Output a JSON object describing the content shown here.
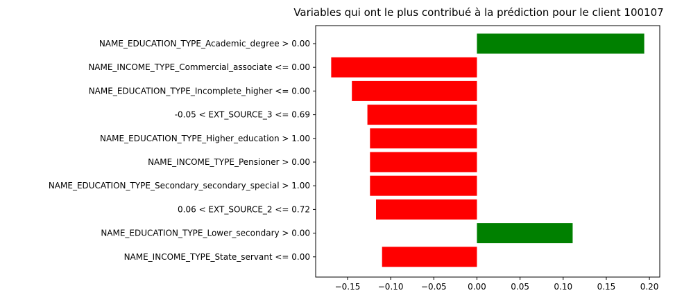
{
  "chart_data": {
    "type": "bar",
    "orientation": "horizontal",
    "title": "Variables qui ont le plus contribué à la prédiction pour le client 100107",
    "xlabel": "",
    "ylabel": "",
    "xlim": [
      -0.187,
      0.212
    ],
    "xticks": [
      -0.15,
      -0.1,
      -0.05,
      0.0,
      0.05,
      0.1,
      0.15,
      0.2
    ],
    "xtick_labels": [
      "−0.15",
      "−0.10",
      "−0.05",
      "0.00",
      "0.05",
      "0.10",
      "0.15",
      "0.20"
    ],
    "grid": false,
    "categories": [
      "NAME_EDUCATION_TYPE_Academic_degree > 0.00",
      "NAME_INCOME_TYPE_Commercial_associate <= 0.00",
      "NAME_EDUCATION_TYPE_Incomplete_higher <= 0.00",
      "-0.05 < EXT_SOURCE_3 <= 0.69",
      "NAME_EDUCATION_TYPE_Higher_education > 1.00",
      "NAME_INCOME_TYPE_Pensioner > 0.00",
      "NAME_EDUCATION_TYPE_Secondary_secondary_special > 1.00",
      "0.06 < EXT_SOURCE_2 <= 0.72",
      "NAME_EDUCATION_TYPE_Lower_secondary > 0.00",
      "NAME_INCOME_TYPE_State_servant <= 0.00"
    ],
    "values": [
      0.194,
      -0.169,
      -0.145,
      -0.127,
      -0.124,
      -0.124,
      -0.124,
      -0.117,
      0.111,
      -0.11
    ],
    "colors": {
      "positive": "#008000",
      "negative": "#ff0000"
    }
  }
}
